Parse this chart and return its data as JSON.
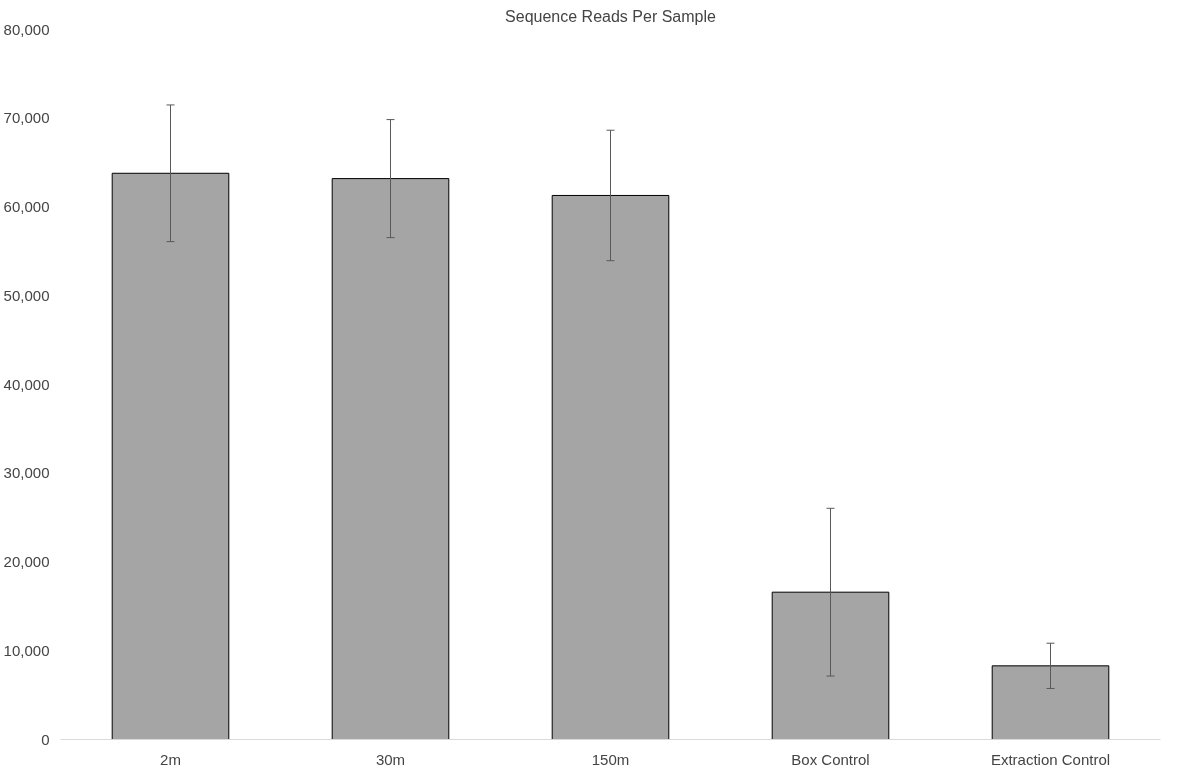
{
  "chart_data": {
    "type": "bar",
    "title": "Sequence Reads Per Sample",
    "categories": [
      "2m",
      "30m",
      "150m",
      "Box Control",
      "Extraction Control"
    ],
    "values": [
      63800,
      63200,
      61300,
      16600,
      8300
    ],
    "errors": [
      7700,
      6650,
      7350,
      9450,
      2550
    ],
    "color": "#a5a5a5",
    "ylim": [
      0,
      80000
    ],
    "yticks": [
      {
        "value": 0,
        "label": "0"
      },
      {
        "value": 10000,
        "label": "10,000"
      },
      {
        "value": 20000,
        "label": "20,000"
      },
      {
        "value": 30000,
        "label": "30,000"
      },
      {
        "value": 40000,
        "label": "40,000"
      },
      {
        "value": 50000,
        "label": "50,000"
      },
      {
        "value": 60000,
        "label": "60,000"
      },
      {
        "value": 70000,
        "label": "70,000"
      },
      {
        "value": 80000,
        "label": "80,000"
      }
    ],
    "grid": false
  }
}
